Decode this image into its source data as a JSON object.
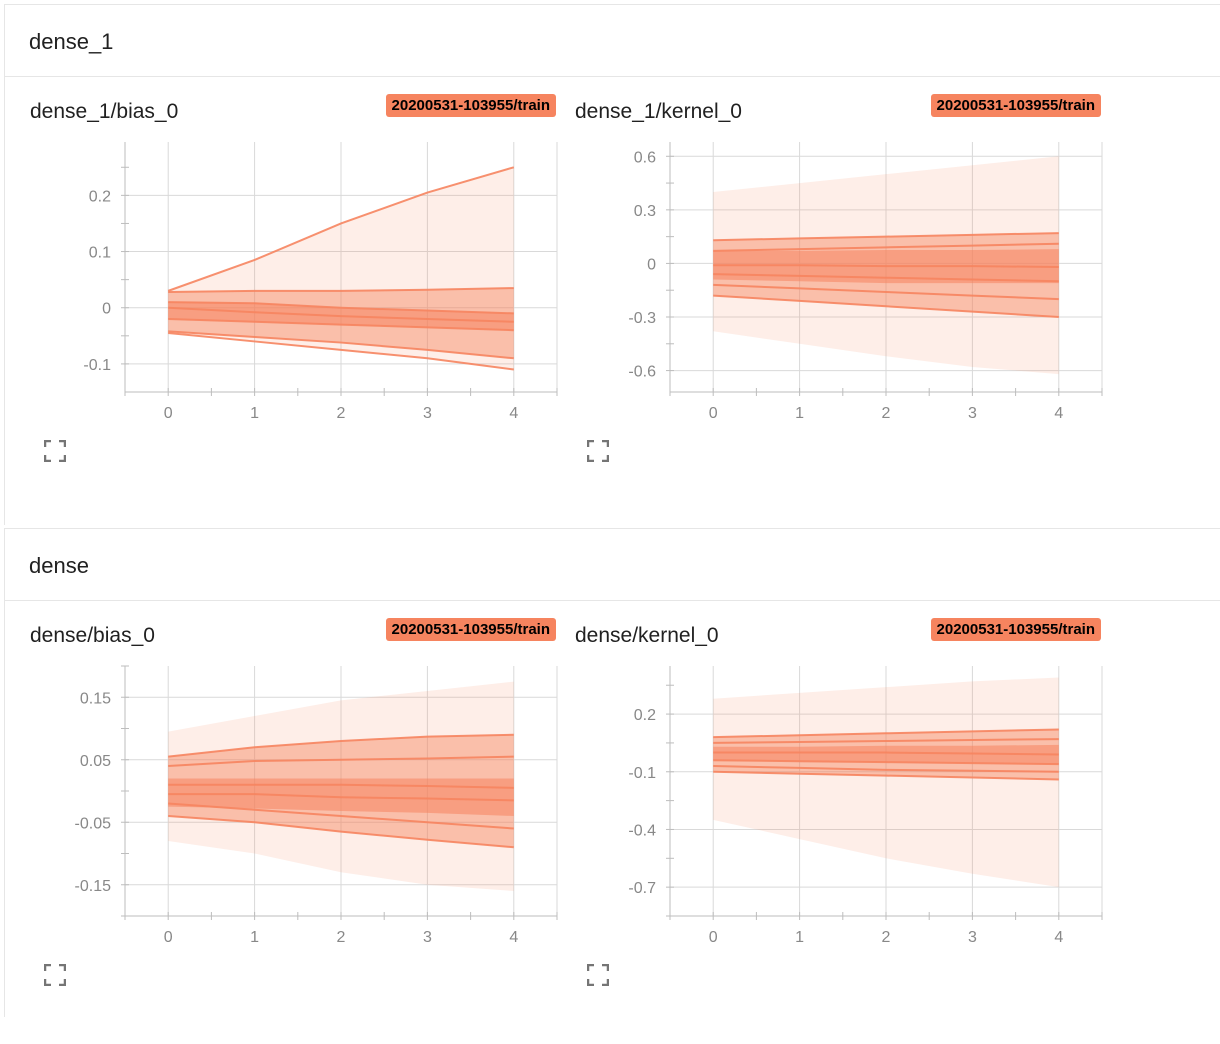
{
  "sections": [
    {
      "title": "dense_1",
      "cards": [
        {
          "title": "dense_1/bias_0",
          "run": "20200531-103955/train",
          "chart_data": {
            "type": "area",
            "x": [
              0,
              1,
              2,
              3,
              4
            ],
            "xticks": [
              "0",
              "1",
              "2",
              "3",
              "4"
            ],
            "xlim": [
              -0.5,
              4.5
            ],
            "yticks": [
              0.2,
              0.1,
              0,
              -0.1
            ],
            "ytick_labels": [
              "0.2",
              "0.1",
              "0",
              "-0.1"
            ],
            "ylim": [
              -0.15,
              0.295
            ],
            "color": "#f6845f",
            "bands": [
              {
                "lower": [
                  -0.045,
                  -0.06,
                  -0.075,
                  -0.09,
                  -0.11
                ],
                "upper": [
                  0.03,
                  0.085,
                  0.15,
                  0.205,
                  0.25
                ]
              },
              {
                "lower": [
                  -0.042,
                  -0.052,
                  -0.062,
                  -0.075,
                  -0.09
                ],
                "upper": [
                  0.028,
                  0.03,
                  0.03,
                  0.032,
                  0.035
                ]
              },
              {
                "lower": [
                  -0.02,
                  -0.025,
                  -0.03,
                  -0.035,
                  -0.04
                ],
                "upper": [
                  0.01,
                  0.008,
                  0.0,
                  -0.005,
                  -0.01
                ]
              }
            ],
            "lines": [
              [
                0.03,
                0.085,
                0.15,
                0.205,
                0.25
              ],
              [
                0.028,
                0.03,
                0.03,
                0.032,
                0.035
              ],
              [
                0.01,
                0.008,
                0.0,
                -0.005,
                -0.01
              ],
              [
                0.0,
                -0.008,
                -0.015,
                -0.02,
                -0.025
              ],
              [
                -0.02,
                -0.025,
                -0.03,
                -0.035,
                -0.04
              ],
              [
                -0.042,
                -0.052,
                -0.062,
                -0.075,
                -0.09
              ],
              [
                -0.045,
                -0.06,
                -0.075,
                -0.09,
                -0.11
              ]
            ]
          }
        },
        {
          "title": "dense_1/kernel_0",
          "run": "20200531-103955/train",
          "chart_data": {
            "type": "area",
            "x": [
              0,
              1,
              2,
              3,
              4
            ],
            "xticks": [
              "0",
              "1",
              "2",
              "3",
              "4"
            ],
            "xlim": [
              -0.5,
              4.5
            ],
            "yticks": [
              0.6,
              0.3,
              0,
              -0.3,
              -0.6
            ],
            "ytick_labels": [
              "0.6",
              "0.3",
              "0",
              "-0.3",
              "-0.6"
            ],
            "ylim": [
              -0.72,
              0.68
            ],
            "color": "#f6845f",
            "bands": [
              {
                "lower": [
                  -0.38,
                  -0.45,
                  -0.52,
                  -0.58,
                  -0.62
                ],
                "upper": [
                  0.4,
                  0.45,
                  0.5,
                  0.55,
                  0.6
                ]
              },
              {
                "lower": [
                  -0.18,
                  -0.21,
                  -0.24,
                  -0.27,
                  -0.3
                ],
                "upper": [
                  0.13,
                  0.14,
                  0.15,
                  0.16,
                  0.17
                ]
              },
              {
                "lower": [
                  -0.09,
                  -0.1,
                  -0.11,
                  -0.11,
                  -0.11
                ],
                "upper": [
                  0.07,
                  0.07,
                  0.075,
                  0.075,
                  0.08
                ]
              }
            ],
            "lines": [
              [
                0.13,
                0.14,
                0.15,
                0.16,
                0.17
              ],
              [
                0.07,
                0.08,
                0.09,
                0.1,
                0.11
              ],
              [
                -0.01,
                -0.01,
                -0.015,
                -0.015,
                -0.02
              ],
              [
                -0.06,
                -0.07,
                -0.08,
                -0.09,
                -0.1
              ],
              [
                -0.12,
                -0.14,
                -0.16,
                -0.18,
                -0.2
              ],
              [
                -0.18,
                -0.21,
                -0.24,
                -0.27,
                -0.3
              ]
            ]
          }
        }
      ]
    },
    {
      "title": "dense",
      "cards": [
        {
          "title": "dense/bias_0",
          "run": "20200531-103955/train",
          "chart_data": {
            "type": "area",
            "x": [
              0,
              1,
              2,
              3,
              4
            ],
            "xticks": [
              "0",
              "1",
              "2",
              "3",
              "4"
            ],
            "xlim": [
              -0.5,
              4.5
            ],
            "yticks": [
              0.15,
              0.05,
              -0.05,
              -0.15
            ],
            "ytick_labels": [
              "0.15",
              "0.05",
              "-0.05",
              "-0.15"
            ],
            "ylim": [
              -0.2,
              0.2
            ],
            "color": "#f6845f",
            "bands": [
              {
                "lower": [
                  -0.08,
                  -0.1,
                  -0.13,
                  -0.15,
                  -0.16
                ],
                "upper": [
                  0.095,
                  0.12,
                  0.145,
                  0.16,
                  0.175
                ]
              },
              {
                "lower": [
                  -0.04,
                  -0.05,
                  -0.065,
                  -0.078,
                  -0.09
                ],
                "upper": [
                  0.055,
                  0.07,
                  0.08,
                  0.087,
                  0.09
                ]
              },
              {
                "lower": [
                  -0.025,
                  -0.028,
                  -0.032,
                  -0.035,
                  -0.04
                ],
                "upper": [
                  0.02,
                  0.02,
                  0.02,
                  0.02,
                  0.02
                ]
              }
            ],
            "lines": [
              [
                0.055,
                0.07,
                0.08,
                0.087,
                0.09
              ],
              [
                0.04,
                0.048,
                0.05,
                0.052,
                0.055
              ],
              [
                0.01,
                0.01,
                0.01,
                0.008,
                0.005
              ],
              [
                -0.005,
                -0.005,
                -0.01,
                -0.012,
                -0.015
              ],
              [
                -0.02,
                -0.03,
                -0.04,
                -0.05,
                -0.06
              ],
              [
                -0.04,
                -0.05,
                -0.065,
                -0.078,
                -0.09
              ]
            ]
          }
        },
        {
          "title": "dense/kernel_0",
          "run": "20200531-103955/train",
          "chart_data": {
            "type": "area",
            "x": [
              0,
              1,
              2,
              3,
              4
            ],
            "xticks": [
              "0",
              "1",
              "2",
              "3",
              "4"
            ],
            "xlim": [
              -0.5,
              4.5
            ],
            "yticks": [
              0.2,
              -0.1,
              -0.4,
              -0.7
            ],
            "ytick_labels": [
              "0.2",
              "-0.1",
              "-0.4",
              "-0.7"
            ],
            "ylim": [
              -0.85,
              0.45
            ],
            "color": "#f6845f",
            "bands": [
              {
                "lower": [
                  -0.35,
                  -0.45,
                  -0.55,
                  -0.63,
                  -0.7
                ],
                "upper": [
                  0.28,
                  0.31,
                  0.34,
                  0.37,
                  0.39
                ]
              },
              {
                "lower": [
                  -0.1,
                  -0.11,
                  -0.12,
                  -0.13,
                  -0.14
                ],
                "upper": [
                  0.08,
                  0.09,
                  0.1,
                  0.11,
                  0.12
                ]
              },
              {
                "lower": [
                  -0.04,
                  -0.045,
                  -0.05,
                  -0.055,
                  -0.06
                ],
                "upper": [
                  0.03,
                  0.03,
                  0.035,
                  0.035,
                  0.04
                ]
              }
            ],
            "lines": [
              [
                0.08,
                0.09,
                0.1,
                0.11,
                0.12
              ],
              [
                0.05,
                0.055,
                0.06,
                0.065,
                0.07
              ],
              [
                0.0,
                0.0,
                0.0,
                -0.005,
                -0.01
              ],
              [
                -0.04,
                -0.045,
                -0.05,
                -0.055,
                -0.06
              ],
              [
                -0.07,
                -0.08,
                -0.09,
                -0.095,
                -0.1
              ],
              [
                -0.1,
                -0.11,
                -0.12,
                -0.13,
                -0.14
              ]
            ]
          }
        }
      ]
    }
  ],
  "icons": {
    "expand": "fullscreen-icon"
  }
}
